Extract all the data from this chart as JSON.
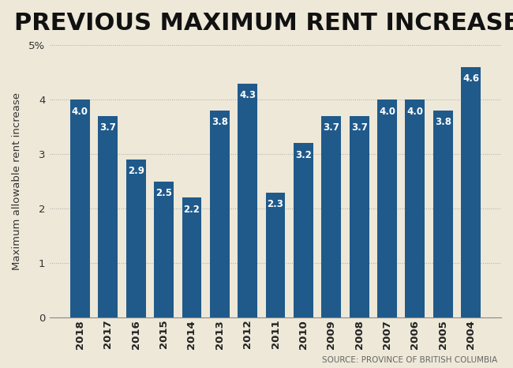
{
  "title": "PREVIOUS MAXIMUM RENT INCREASES",
  "ylabel": "Maximum allowable rent increase",
  "source": "SOURCE: PROVINCE OF BRITISH COLUMBIA",
  "categories": [
    "2018",
    "2017",
    "2016",
    "2015",
    "2014",
    "2013",
    "2012",
    "2011",
    "2010",
    "2009",
    "2008",
    "2007",
    "2006",
    "2005",
    "2004"
  ],
  "values": [
    4.0,
    3.7,
    2.9,
    2.5,
    2.2,
    3.8,
    4.3,
    2.3,
    3.2,
    3.7,
    3.7,
    4.0,
    4.0,
    3.8,
    4.6
  ],
  "bar_color": "#1f5a8b",
  "background_color": "#ede8d8",
  "ylim": [
    0,
    5
  ],
  "ytick_values": [
    0,
    1,
    2,
    3,
    4,
    5
  ],
  "title_fontsize": 22,
  "ylabel_fontsize": 9.5,
  "label_fontsize": 8.5,
  "source_fontsize": 7.5
}
